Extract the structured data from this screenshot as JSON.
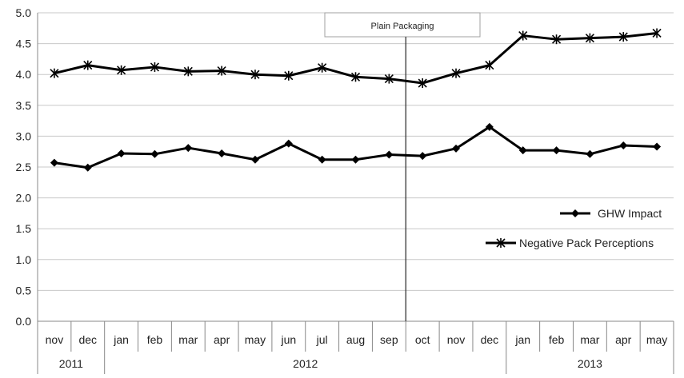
{
  "chart_data": {
    "type": "line",
    "categories": [
      "nov",
      "dec",
      "jan",
      "feb",
      "mar",
      "apr",
      "may",
      "jun",
      "jul",
      "aug",
      "sep",
      "oct",
      "nov",
      "dec",
      "jan",
      "feb",
      "mar",
      "apr",
      "may"
    ],
    "year_groups": [
      {
        "label": "2011",
        "start": 0,
        "end": 1
      },
      {
        "label": "2012",
        "start": 2,
        "end": 13
      },
      {
        "label": "2013",
        "start": 14,
        "end": 18
      }
    ],
    "series": [
      {
        "name": "GHW Impact",
        "marker": "diamond",
        "values": [
          2.57,
          2.49,
          2.72,
          2.71,
          2.81,
          2.72,
          2.62,
          2.88,
          2.62,
          2.62,
          2.7,
          2.68,
          2.8,
          3.15,
          2.77,
          2.77,
          2.71,
          2.85,
          2.83
        ]
      },
      {
        "name": "Negative Pack Perceptions",
        "marker": "asterisk",
        "values": [
          4.02,
          4.15,
          4.07,
          4.12,
          4.05,
          4.06,
          4.0,
          3.98,
          4.11,
          3.96,
          3.93,
          3.86,
          4.02,
          4.15,
          4.63,
          4.57,
          4.59,
          4.61,
          4.67
        ]
      }
    ],
    "ylim": [
      0,
      5
    ],
    "yticks": [
      "0.0",
      "0.5",
      "1.0",
      "1.5",
      "2.0",
      "2.5",
      "3.0",
      "3.5",
      "4.0",
      "4.5",
      "5.0"
    ],
    "grid": true,
    "legend_position": "right",
    "annotation": {
      "label": "Plain Packaging",
      "after_index": 10
    },
    "line_color": "#000000",
    "grid_color": "#c8c8c8"
  }
}
